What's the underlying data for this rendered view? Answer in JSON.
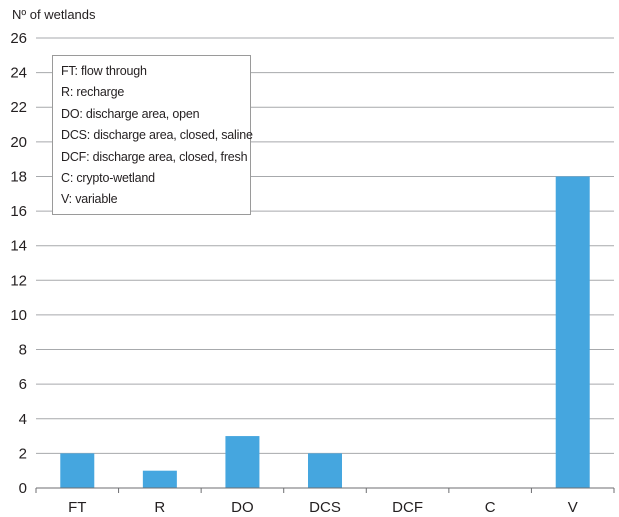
{
  "chart_data": {
    "type": "bar",
    "ylabel": "Nº of wetlands",
    "categories": [
      "FT",
      "R",
      "DO",
      "DCS",
      "DCF",
      "C",
      "V"
    ],
    "values": [
      2,
      1,
      3,
      2,
      0,
      0,
      18
    ],
    "ylim": [
      0,
      26
    ],
    "yticks": [
      0,
      2,
      4,
      6,
      8,
      10,
      12,
      14,
      16,
      18,
      20,
      22,
      24,
      26
    ],
    "grid": true,
    "bar_color": "#45a6df",
    "legend_placement": "top-left",
    "legend": [
      "FT: flow through",
      "R: recharge",
      "DO: discharge area, open",
      "DCS: discharge area, closed, saline",
      "DCF: discharge area, closed, fresh",
      "C: crypto-wetland",
      "V: variable"
    ]
  }
}
